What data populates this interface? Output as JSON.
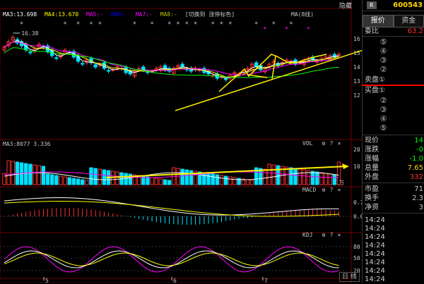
{
  "chart_header": {
    "ma3": "MA3:13.698",
    "ma4": "MA4:13.670",
    "ma5": "MA5:-",
    "ma6": "MA6:-",
    "ma7": "MA7:-",
    "ma8": "MA8:-",
    "switch_text": "[切换到 涨停标色]",
    "ma_button": "MA(8线)",
    "hide_label": "隐藏"
  },
  "price_axis": {
    "ticks": [
      "16",
      "15",
      "14",
      "13",
      "12"
    ]
  },
  "high_marker": "16.38",
  "vol_panel": {
    "legend": "MA3:8077 3.336",
    "title": "VOL",
    "unit": "万",
    "ticks": [
      "20",
      "10"
    ]
  },
  "macd_panel": {
    "title": "MACD",
    "ticks": [
      "0.7",
      "0.0"
    ]
  },
  "kdj_panel": {
    "title": "KDJ",
    "ticks": [
      "80",
      "50",
      "20"
    ]
  },
  "panel_icons": [
    "gear-icon",
    "help-icon",
    "close-icon"
  ],
  "x_axis": {
    "labels": [
      "5",
      "6",
      "7"
    ]
  },
  "bottom_tab": "日 线",
  "colors": {
    "up": "#ff3030",
    "down": "#00e0ff",
    "ma_white": "#ffffff",
    "ma_yellow": "#ffff00",
    "ma_magenta": "#ff00ff",
    "ma_green": "#00ff00",
    "annotation": "#ffee00",
    "red_line": "#ff0000"
  },
  "right_panel": {
    "badge": "R",
    "stock_code": "600543",
    "tabs": [
      "报价",
      "资金"
    ],
    "weibi_label": "委比",
    "weibi_value": "63.2",
    "sell_levels": [
      "⑤",
      "④",
      "③",
      "②"
    ],
    "sell_first": "卖盘①",
    "buy_first": "买盘①",
    "buy_levels": [
      "②",
      "③",
      "④",
      "⑤"
    ],
    "stats": [
      {
        "label": "现价",
        "value": "14",
        "color": "#00ff00"
      },
      {
        "label": "涨跌",
        "value": "-0",
        "color": "#00ff00"
      },
      {
        "label": "涨幅",
        "value": "-1.0",
        "color": "#00ff00"
      },
      {
        "label": "总量",
        "value": "7.65",
        "color": "#ffd700"
      },
      {
        "label": "外盘",
        "value": "332",
        "color": "#ff3030"
      }
    ],
    "stats2": [
      {
        "label": "市盈",
        "value": "71",
        "color": "#c8c8c8"
      },
      {
        "label": "换手",
        "value": "2.3",
        "color": "#c8c8c8"
      },
      {
        "label": "净资",
        "value": "3",
        "color": "#c8c8c8"
      }
    ],
    "times": [
      "14:24",
      "14:24",
      "14:24",
      "14:24",
      "14:24",
      "14:24",
      "14:24",
      "14:24"
    ]
  }
}
